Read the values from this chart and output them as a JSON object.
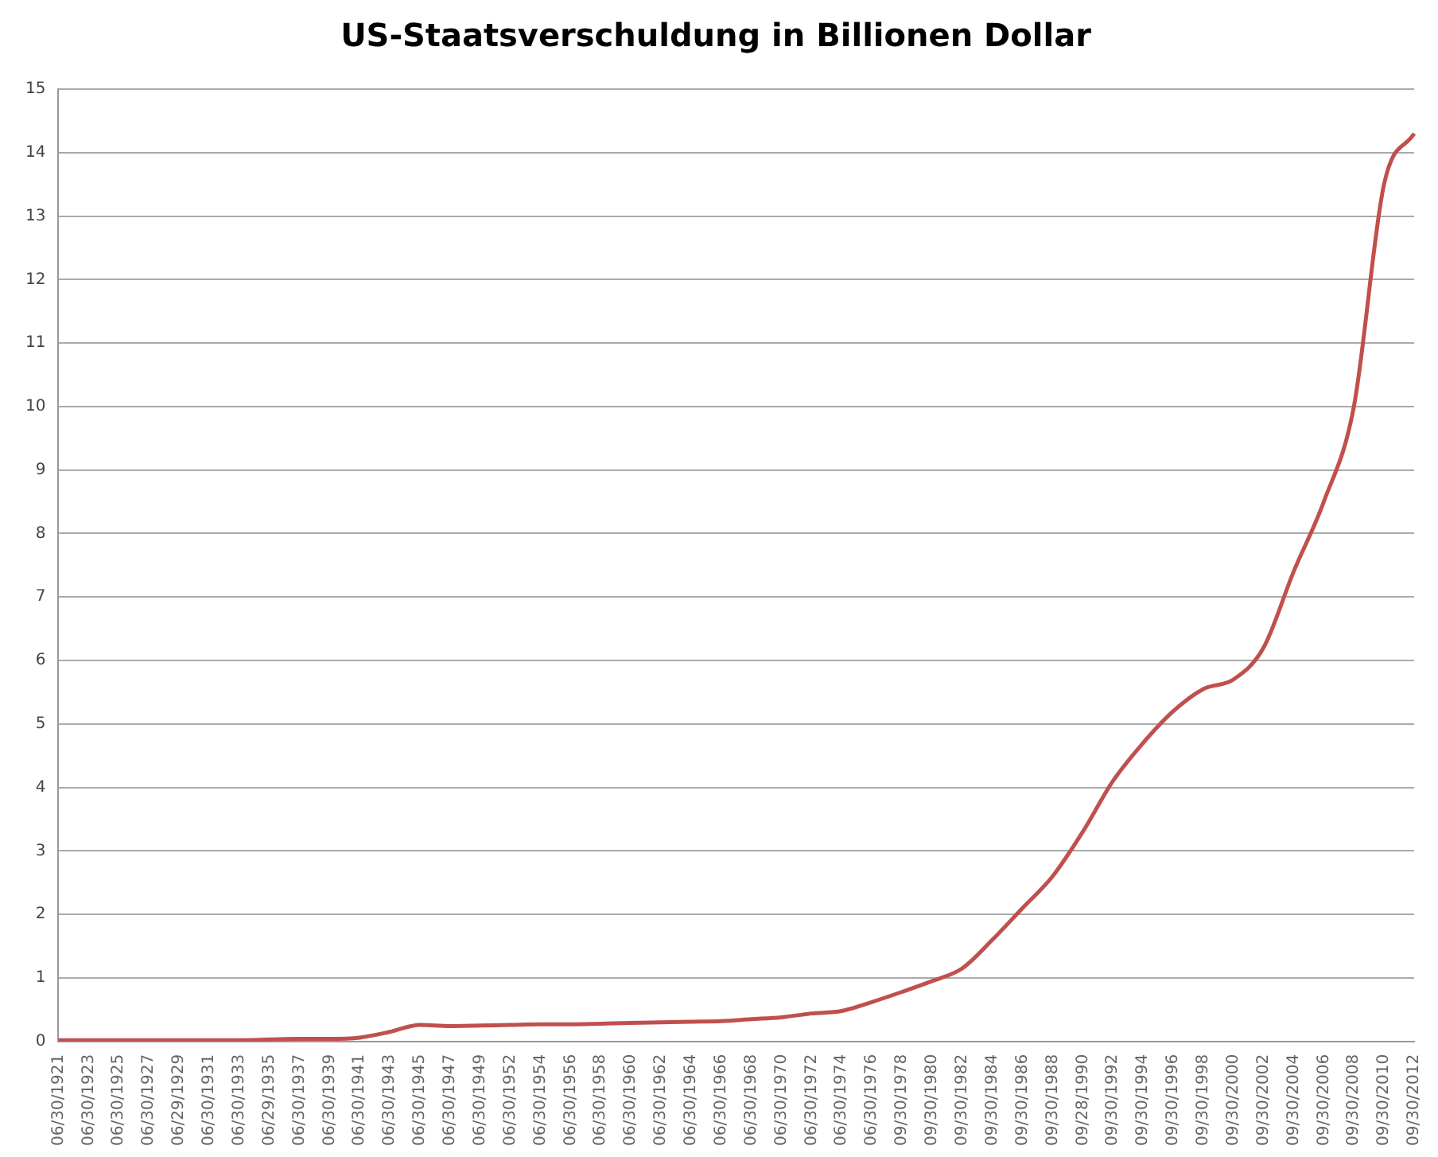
{
  "chart_data": {
    "type": "line",
    "title": "US-Staatsverschuldung in Billionen Dollar",
    "categories": [
      "06/30/1921",
      "06/30/1923",
      "06/30/1925",
      "06/30/1927",
      "06/29/1929",
      "06/30/1931",
      "06/30/1933",
      "06/29/1935",
      "06/30/1937",
      "06/30/1939",
      "06/30/1941",
      "06/30/1943",
      "06/30/1945",
      "06/30/1947",
      "06/30/1949",
      "06/30/1952",
      "06/30/1954",
      "06/30/1956",
      "06/30/1958",
      "06/30/1960",
      "06/30/1962",
      "06/30/1964",
      "06/30/1966",
      "06/30/1968",
      "06/30/1970",
      "06/30/1972",
      "06/30/1974",
      "06/30/1976",
      "09/30/1978",
      "09/30/1980",
      "09/30/1982",
      "09/30/1984",
      "09/30/1986",
      "09/30/1988",
      "09/28/1990",
      "09/30/1992",
      "09/30/1994",
      "09/30/1996",
      "09/30/1998",
      "09/30/2000",
      "09/30/2002",
      "09/30/2004",
      "09/30/2006",
      "09/30/2008",
      "09/30/2010",
      "09/30/2012"
    ],
    "series": [
      {
        "color": "#c0504d",
        "values": [
          0.02,
          0.02,
          0.02,
          0.02,
          0.02,
          0.02,
          0.02,
          0.03,
          0.04,
          0.04,
          0.06,
          0.15,
          0.26,
          0.24,
          0.25,
          0.26,
          0.27,
          0.27,
          0.28,
          0.29,
          0.3,
          0.31,
          0.32,
          0.35,
          0.38,
          0.44,
          0.48,
          0.62,
          0.78,
          0.95,
          1.15,
          1.6,
          2.1,
          2.6,
          3.3,
          4.1,
          4.7,
          5.2,
          5.55,
          5.7,
          6.2,
          7.4,
          8.5,
          10,
          13.5,
          14.3
        ]
      }
    ],
    "ylim": [
      0,
      15
    ],
    "yticks": [
      0,
      1,
      2,
      3,
      4,
      5,
      6,
      7,
      8,
      9,
      10,
      11,
      12,
      13,
      14,
      15
    ],
    "grid": "y",
    "marker": "none",
    "line_style": "solid"
  }
}
